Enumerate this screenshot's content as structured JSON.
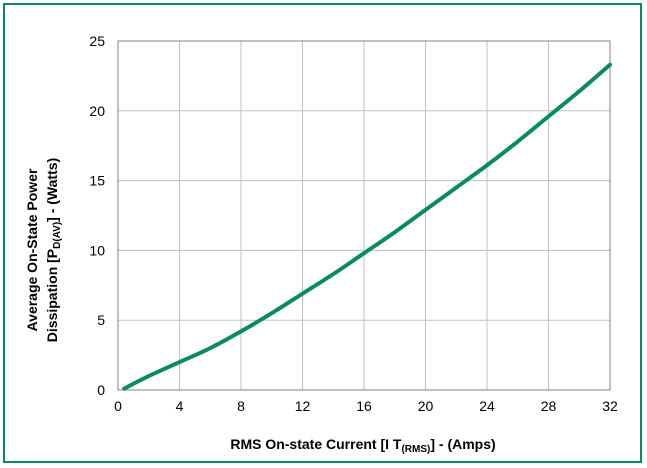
{
  "chart_data": {
    "type": "line",
    "title": "",
    "xlabel": {
      "main": "RMS On-state Current [I T",
      "sub": "(RMS)",
      "tail": "] - (Amps)"
    },
    "ylabel": {
      "line1": "Average On-State Power",
      "line2_main": "Dissipation [P",
      "line2_sub": "D(AV)",
      "line2_tail": "] - (Watts)"
    },
    "xlim": [
      0,
      32
    ],
    "ylim": [
      0,
      25
    ],
    "xticks": [
      0,
      4,
      8,
      12,
      16,
      20,
      24,
      28,
      32
    ],
    "yticks": [
      0,
      5,
      10,
      15,
      20,
      25
    ],
    "grid": true,
    "legend": "none",
    "colors": {
      "line": "#0b8a5a",
      "grid": "#c0c0c0",
      "frame": "#0b8a5a"
    },
    "series": [
      {
        "x": [
          0.4,
          2,
          4,
          6,
          8,
          10,
          12,
          14,
          16,
          18,
          20,
          22,
          24,
          26,
          28,
          30,
          32
        ],
        "y": [
          0.1,
          1.0,
          2.0,
          3.0,
          4.2,
          5.5,
          6.9,
          8.3,
          9.8,
          11.3,
          12.9,
          14.5,
          16.1,
          17.8,
          19.6,
          21.4,
          23.3
        ]
      }
    ]
  }
}
